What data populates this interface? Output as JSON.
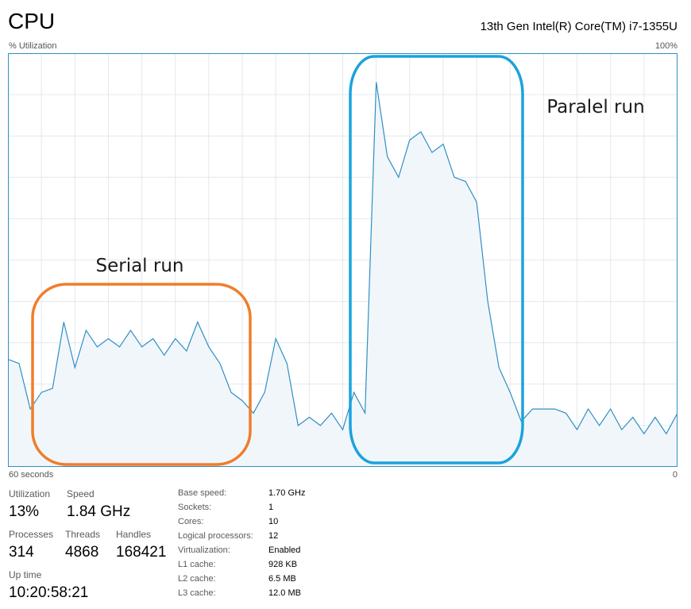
{
  "header": {
    "title": "CPU",
    "model": "13th Gen Intel(R) Core(TM) i7-1355U",
    "y_label": "% Utilization",
    "y_max": "100%",
    "x_left": "60 seconds",
    "x_right": "0"
  },
  "colors": {
    "line": "#2f8fc4",
    "fill": "#f1f6fb",
    "grid": "#e3e8ee",
    "serial_box": "#f07d2a",
    "parallel_box": "#1aa3dc"
  },
  "chart_data": {
    "type": "area",
    "x_unit": "seconds ago",
    "xlim": [
      60,
      0
    ],
    "ylim": [
      0,
      100
    ],
    "grid": true,
    "x": [
      60,
      59,
      58,
      57,
      56,
      55,
      54,
      53,
      52,
      51,
      50,
      49,
      48,
      47,
      46,
      45,
      44,
      43,
      42,
      41,
      40,
      39,
      38,
      37,
      36,
      35,
      34,
      33,
      32,
      31,
      30,
      29,
      28,
      27,
      26,
      25,
      24,
      23,
      22,
      21,
      20,
      19,
      18,
      17,
      16,
      15,
      14,
      13,
      12,
      11,
      10,
      9,
      8,
      7,
      6,
      5,
      4,
      3,
      2,
      1,
      0
    ],
    "y": [
      26,
      25,
      14,
      18,
      19,
      35,
      24,
      33,
      29,
      31,
      29,
      33,
      29,
      31,
      27,
      31,
      28,
      35,
      29,
      25,
      18,
      16,
      13,
      18,
      31,
      25,
      10,
      12,
      10,
      13,
      9,
      18,
      13,
      93,
      75,
      70,
      79,
      81,
      76,
      78,
      70,
      69,
      64,
      40,
      24,
      18,
      11,
      14,
      14,
      14,
      13,
      9,
      14,
      10,
      14,
      9,
      12,
      8,
      12,
      8,
      13
    ],
    "annotations": [
      "Serial run",
      "Paralel run"
    ]
  },
  "stats": {
    "utilization": {
      "label": "Utilization",
      "value": "13%"
    },
    "speed": {
      "label": "Speed",
      "value": "1.84 GHz"
    },
    "processes": {
      "label": "Processes",
      "value": "314"
    },
    "threads": {
      "label": "Threads",
      "value": "4868"
    },
    "handles": {
      "label": "Handles",
      "value": "168421"
    },
    "uptime": {
      "label": "Up time",
      "value": "10:20:58:21"
    }
  },
  "details": [
    {
      "key": "Base speed:",
      "value": "1.70 GHz"
    },
    {
      "key": "Sockets:",
      "value": "1"
    },
    {
      "key": "Cores:",
      "value": "10"
    },
    {
      "key": "Logical processors:",
      "value": "12"
    },
    {
      "key": "Virtualization:",
      "value": "Enabled"
    },
    {
      "key": "L1 cache:",
      "value": "928 KB"
    },
    {
      "key": "L2 cache:",
      "value": "6.5 MB"
    },
    {
      "key": "L3 cache:",
      "value": "12.0 MB"
    }
  ]
}
